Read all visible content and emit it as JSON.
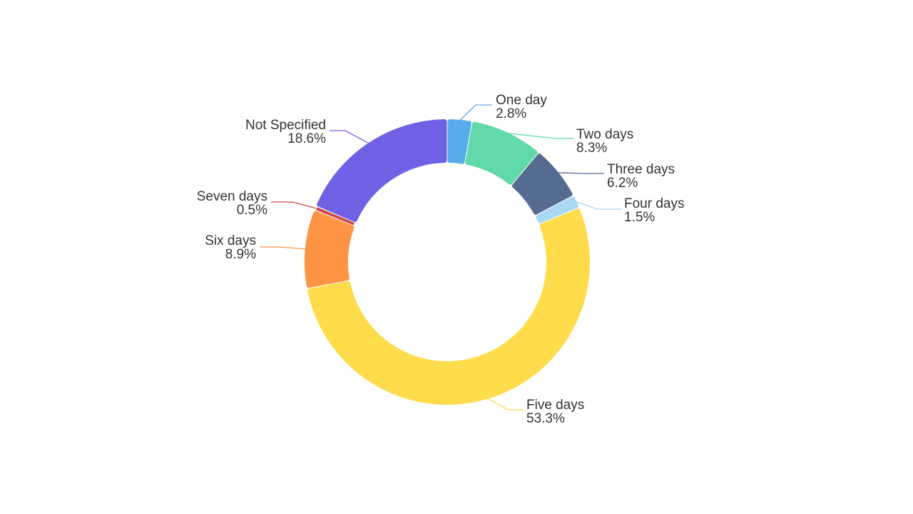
{
  "chart_data": {
    "type": "pie",
    "variant": "donut",
    "title": "",
    "start_angle_deg": 90,
    "direction": "clockwise",
    "legend": "none",
    "slices": [
      {
        "label": "One day",
        "percent_label": "2.8%",
        "value": 2.8,
        "color": "#5aabea"
      },
      {
        "label": "Two days",
        "percent_label": "8.3%",
        "value": 8.3,
        "color": "#61d9a9"
      },
      {
        "label": "Three days",
        "percent_label": "6.2%",
        "value": 6.2,
        "color": "#566b92"
      },
      {
        "label": "Four days",
        "percent_label": "1.5%",
        "value": 1.5,
        "color": "#a8d8f3"
      },
      {
        "label": "Five days",
        "percent_label": "53.3%",
        "value": 53.3,
        "color": "#fedc4b"
      },
      {
        "label": "Six days",
        "percent_label": "8.9%",
        "value": 8.9,
        "color": "#fd9344"
      },
      {
        "label": "Seven days",
        "percent_label": "0.5%",
        "value": 0.5,
        "color": "#cf4a48"
      },
      {
        "label": "Not Specified",
        "percent_label": "18.6%",
        "value": 18.6,
        "color": "#6f61e3"
      }
    ]
  }
}
